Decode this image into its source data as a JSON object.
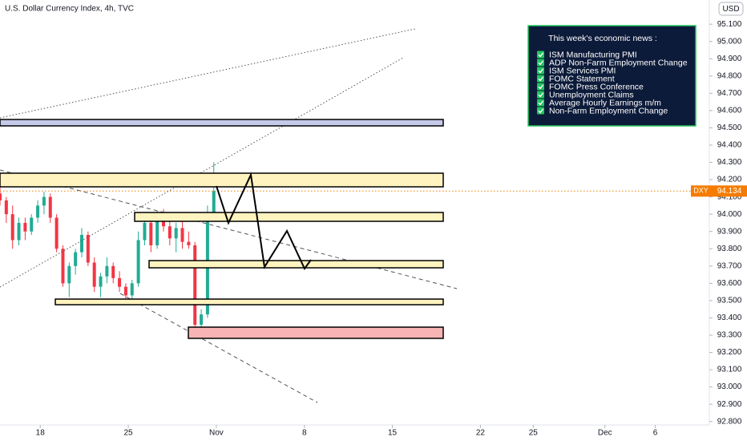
{
  "chart_data": {
    "type": "candlestick",
    "title": "U.S. Dollar Currency Index, 4h, TVC",
    "currency_button": "USD",
    "symbol_tag": "DXY",
    "last_price": 94.134,
    "up_color": "#22ab94",
    "down_color": "#f23645",
    "last_price_color": "#f57c00",
    "xlim": [
      -3.2,
      53.2
    ],
    "ylim": [
      92.78,
      95.24
    ],
    "xticks": [
      {
        "value": 0,
        "label": "18"
      },
      {
        "value": 7,
        "label": "25"
      },
      {
        "value": 14,
        "label": "Nov"
      },
      {
        "value": 21,
        "label": "8"
      },
      {
        "value": 28,
        "label": "15"
      },
      {
        "value": 35,
        "label": "22"
      },
      {
        "value": 39.2,
        "label": "25"
      },
      {
        "value": 44.9,
        "label": "Dec"
      },
      {
        "value": 48.9,
        "label": "6"
      }
    ],
    "yticks": [
      {
        "value": 95.1,
        "label": "95.100"
      },
      {
        "value": 95.0,
        "label": "95.000"
      },
      {
        "value": 94.9,
        "label": "94.900"
      },
      {
        "value": 94.8,
        "label": "94.800"
      },
      {
        "value": 94.7,
        "label": "94.700"
      },
      {
        "value": 94.6,
        "label": "94.600"
      },
      {
        "value": 94.5,
        "label": "94.500"
      },
      {
        "value": 94.4,
        "label": "94.400"
      },
      {
        "value": 94.3,
        "label": "94.300"
      },
      {
        "value": 94.2,
        "label": "94.200"
      },
      {
        "value": 94.1,
        "label": "94.100"
      },
      {
        "value": 94.0,
        "label": "94.000"
      },
      {
        "value": 93.9,
        "label": "93.900"
      },
      {
        "value": 93.8,
        "label": "93.800"
      },
      {
        "value": 93.7,
        "label": "93.700"
      },
      {
        "value": 93.6,
        "label": "93.600"
      },
      {
        "value": 93.5,
        "label": "93.500"
      },
      {
        "value": 93.4,
        "label": "93.400"
      },
      {
        "value": 93.3,
        "label": "93.300"
      },
      {
        "value": 93.2,
        "label": "93.200"
      },
      {
        "value": 93.1,
        "label": "93.100"
      },
      {
        "value": 93.0,
        "label": "93.000"
      },
      {
        "value": 92.9,
        "label": "92.900"
      },
      {
        "value": 92.8,
        "label": "92.800"
      }
    ],
    "x": [
      -3.2,
      -2.7,
      -2.2,
      -1.7,
      -1.2,
      -0.7,
      -0.2,
      0.3,
      0.8,
      1.3,
      1.8,
      2.3,
      2.8,
      3.3,
      3.8,
      4.3,
      4.8,
      5.3,
      5.8,
      6.3,
      6.8,
      7.3,
      7.8,
      8.3,
      8.8,
      9.3,
      9.8,
      10.3,
      10.8,
      11.3,
      11.8,
      12.3,
      12.8,
      13.3,
      13.8
    ],
    "open": [
      94.12,
      94.08,
      94.0,
      93.85,
      93.95,
      93.9,
      93.98,
      94.05,
      94.1,
      93.98,
      93.8,
      93.6,
      93.7,
      93.78,
      93.88,
      93.72,
      93.58,
      93.64,
      93.7,
      93.63,
      93.58,
      93.53,
      93.6,
      93.85,
      93.95,
      93.82,
      94.0,
      93.93,
      93.86,
      93.92,
      93.84,
      93.82,
      93.36,
      93.42,
      94.0
    ],
    "high": [
      94.2,
      94.1,
      94.05,
      93.98,
      93.98,
      94.0,
      94.08,
      94.13,
      94.12,
      94.0,
      93.82,
      93.72,
      93.8,
      93.92,
      93.9,
      93.75,
      93.66,
      93.75,
      93.72,
      93.67,
      93.6,
      93.62,
      93.9,
      94.0,
      93.98,
      94.02,
      94.03,
      94.0,
      93.95,
      93.96,
      93.9,
      93.84,
      93.45,
      94.05,
      94.3
    ],
    "low": [
      94.05,
      93.95,
      93.8,
      93.82,
      93.85,
      93.88,
      93.95,
      94.0,
      93.95,
      93.78,
      93.58,
      93.52,
      93.65,
      93.75,
      93.7,
      93.55,
      93.52,
      93.6,
      93.6,
      93.55,
      93.5,
      93.5,
      93.58,
      93.82,
      93.78,
      93.8,
      93.9,
      93.82,
      93.78,
      93.8,
      93.8,
      93.3,
      93.3,
      93.4,
      93.98
    ],
    "close": [
      94.08,
      94.0,
      93.85,
      93.95,
      93.9,
      93.98,
      94.05,
      94.1,
      93.98,
      93.8,
      93.6,
      93.7,
      93.78,
      93.88,
      93.72,
      93.58,
      93.64,
      93.7,
      93.63,
      93.58,
      93.53,
      93.6,
      93.85,
      93.95,
      93.82,
      94.0,
      93.93,
      93.86,
      93.92,
      93.84,
      93.82,
      93.36,
      93.42,
      94.0,
      94.134
    ],
    "news_box": {
      "title": "This week's economic news :",
      "items": [
        "ISM Manufacturing PMI",
        "ADP Non-Farm Employment Change",
        "ISM Services PMI",
        "FOMC Statement",
        "FOMC Press Conference",
        "Unemployment Claims",
        "Average Hourly Earnings m/m",
        "Non-Farm Employment Change"
      ]
    }
  }
}
